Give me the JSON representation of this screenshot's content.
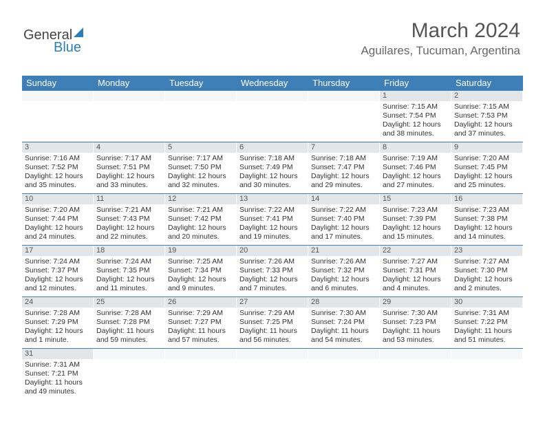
{
  "logo": {
    "text1": "General",
    "text2": "Blue"
  },
  "title": "March 2024",
  "location": "Aguilares, Tucuman, Argentina",
  "colors": {
    "header_bg": "#3e7fb8",
    "header_fg": "#ffffff",
    "daynum_bg": "#e2e6e9",
    "rule": "#3e7fb8"
  },
  "day_headers": [
    "Sunday",
    "Monday",
    "Tuesday",
    "Wednesday",
    "Thursday",
    "Friday",
    "Saturday"
  ],
  "weeks": [
    [
      {
        "n": "",
        "lines": []
      },
      {
        "n": "",
        "lines": []
      },
      {
        "n": "",
        "lines": []
      },
      {
        "n": "",
        "lines": []
      },
      {
        "n": "",
        "lines": []
      },
      {
        "n": "1",
        "lines": [
          "Sunrise: 7:15 AM",
          "Sunset: 7:54 PM",
          "Daylight: 12 hours",
          "and 38 minutes."
        ]
      },
      {
        "n": "2",
        "lines": [
          "Sunrise: 7:15 AM",
          "Sunset: 7:53 PM",
          "Daylight: 12 hours",
          "and 37 minutes."
        ]
      }
    ],
    [
      {
        "n": "3",
        "lines": [
          "Sunrise: 7:16 AM",
          "Sunset: 7:52 PM",
          "Daylight: 12 hours",
          "and 35 minutes."
        ]
      },
      {
        "n": "4",
        "lines": [
          "Sunrise: 7:17 AM",
          "Sunset: 7:51 PM",
          "Daylight: 12 hours",
          "and 33 minutes."
        ]
      },
      {
        "n": "5",
        "lines": [
          "Sunrise: 7:17 AM",
          "Sunset: 7:50 PM",
          "Daylight: 12 hours",
          "and 32 minutes."
        ]
      },
      {
        "n": "6",
        "lines": [
          "Sunrise: 7:18 AM",
          "Sunset: 7:49 PM",
          "Daylight: 12 hours",
          "and 30 minutes."
        ]
      },
      {
        "n": "7",
        "lines": [
          "Sunrise: 7:18 AM",
          "Sunset: 7:47 PM",
          "Daylight: 12 hours",
          "and 29 minutes."
        ]
      },
      {
        "n": "8",
        "lines": [
          "Sunrise: 7:19 AM",
          "Sunset: 7:46 PM",
          "Daylight: 12 hours",
          "and 27 minutes."
        ]
      },
      {
        "n": "9",
        "lines": [
          "Sunrise: 7:20 AM",
          "Sunset: 7:45 PM",
          "Daylight: 12 hours",
          "and 25 minutes."
        ]
      }
    ],
    [
      {
        "n": "10",
        "lines": [
          "Sunrise: 7:20 AM",
          "Sunset: 7:44 PM",
          "Daylight: 12 hours",
          "and 24 minutes."
        ]
      },
      {
        "n": "11",
        "lines": [
          "Sunrise: 7:21 AM",
          "Sunset: 7:43 PM",
          "Daylight: 12 hours",
          "and 22 minutes."
        ]
      },
      {
        "n": "12",
        "lines": [
          "Sunrise: 7:21 AM",
          "Sunset: 7:42 PM",
          "Daylight: 12 hours",
          "and 20 minutes."
        ]
      },
      {
        "n": "13",
        "lines": [
          "Sunrise: 7:22 AM",
          "Sunset: 7:41 PM",
          "Daylight: 12 hours",
          "and 19 minutes."
        ]
      },
      {
        "n": "14",
        "lines": [
          "Sunrise: 7:22 AM",
          "Sunset: 7:40 PM",
          "Daylight: 12 hours",
          "and 17 minutes."
        ]
      },
      {
        "n": "15",
        "lines": [
          "Sunrise: 7:23 AM",
          "Sunset: 7:39 PM",
          "Daylight: 12 hours",
          "and 15 minutes."
        ]
      },
      {
        "n": "16",
        "lines": [
          "Sunrise: 7:23 AM",
          "Sunset: 7:38 PM",
          "Daylight: 12 hours",
          "and 14 minutes."
        ]
      }
    ],
    [
      {
        "n": "17",
        "lines": [
          "Sunrise: 7:24 AM",
          "Sunset: 7:37 PM",
          "Daylight: 12 hours",
          "and 12 minutes."
        ]
      },
      {
        "n": "18",
        "lines": [
          "Sunrise: 7:24 AM",
          "Sunset: 7:35 PM",
          "Daylight: 12 hours",
          "and 11 minutes."
        ]
      },
      {
        "n": "19",
        "lines": [
          "Sunrise: 7:25 AM",
          "Sunset: 7:34 PM",
          "Daylight: 12 hours",
          "and 9 minutes."
        ]
      },
      {
        "n": "20",
        "lines": [
          "Sunrise: 7:26 AM",
          "Sunset: 7:33 PM",
          "Daylight: 12 hours",
          "and 7 minutes."
        ]
      },
      {
        "n": "21",
        "lines": [
          "Sunrise: 7:26 AM",
          "Sunset: 7:32 PM",
          "Daylight: 12 hours",
          "and 6 minutes."
        ]
      },
      {
        "n": "22",
        "lines": [
          "Sunrise: 7:27 AM",
          "Sunset: 7:31 PM",
          "Daylight: 12 hours",
          "and 4 minutes."
        ]
      },
      {
        "n": "23",
        "lines": [
          "Sunrise: 7:27 AM",
          "Sunset: 7:30 PM",
          "Daylight: 12 hours",
          "and 2 minutes."
        ]
      }
    ],
    [
      {
        "n": "24",
        "lines": [
          "Sunrise: 7:28 AM",
          "Sunset: 7:29 PM",
          "Daylight: 12 hours",
          "and 1 minute."
        ]
      },
      {
        "n": "25",
        "lines": [
          "Sunrise: 7:28 AM",
          "Sunset: 7:28 PM",
          "Daylight: 11 hours",
          "and 59 minutes."
        ]
      },
      {
        "n": "26",
        "lines": [
          "Sunrise: 7:29 AM",
          "Sunset: 7:27 PM",
          "Daylight: 11 hours",
          "and 57 minutes."
        ]
      },
      {
        "n": "27",
        "lines": [
          "Sunrise: 7:29 AM",
          "Sunset: 7:25 PM",
          "Daylight: 11 hours",
          "and 56 minutes."
        ]
      },
      {
        "n": "28",
        "lines": [
          "Sunrise: 7:30 AM",
          "Sunset: 7:24 PM",
          "Daylight: 11 hours",
          "and 54 minutes."
        ]
      },
      {
        "n": "29",
        "lines": [
          "Sunrise: 7:30 AM",
          "Sunset: 7:23 PM",
          "Daylight: 11 hours",
          "and 53 minutes."
        ]
      },
      {
        "n": "30",
        "lines": [
          "Sunrise: 7:31 AM",
          "Sunset: 7:22 PM",
          "Daylight: 11 hours",
          "and 51 minutes."
        ]
      }
    ],
    [
      {
        "n": "31",
        "lines": [
          "Sunrise: 7:31 AM",
          "Sunset: 7:21 PM",
          "Daylight: 11 hours",
          "and 49 minutes."
        ]
      },
      {
        "n": "",
        "lines": []
      },
      {
        "n": "",
        "lines": []
      },
      {
        "n": "",
        "lines": []
      },
      {
        "n": "",
        "lines": []
      },
      {
        "n": "",
        "lines": []
      },
      {
        "n": "",
        "lines": []
      }
    ]
  ]
}
